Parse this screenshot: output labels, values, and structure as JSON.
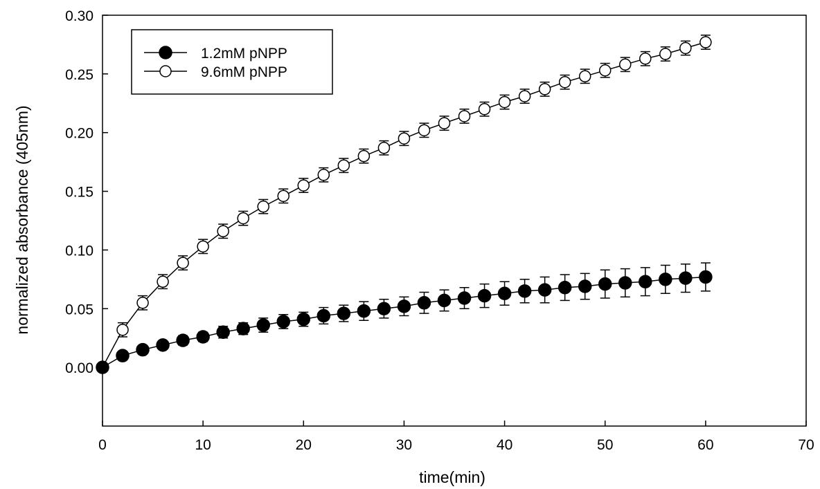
{
  "chart_data": {
    "type": "line",
    "title": "",
    "xlabel": "time(min)",
    "ylabel": "normalized absorbance (405nm)",
    "xlim": [
      0,
      70
    ],
    "ylim": [
      -0.05,
      0.3
    ],
    "x_ticks": [
      "0",
      "10",
      "20",
      "30",
      "40",
      "50",
      "60",
      "70"
    ],
    "y_ticks": [
      "0.00",
      "0.05",
      "0.10",
      "0.15",
      "0.20",
      "0.25",
      "0.30"
    ],
    "grid": false,
    "legend_position": "top-left",
    "x": [
      0,
      2,
      4,
      6,
      8,
      10,
      12,
      14,
      16,
      18,
      20,
      22,
      24,
      26,
      28,
      30,
      32,
      34,
      36,
      38,
      40,
      42,
      44,
      46,
      48,
      50,
      52,
      54,
      56,
      58,
      60
    ],
    "series": [
      {
        "name": "1.2mM pNPP",
        "marker": "filled-circle",
        "values": [
          0.0,
          0.01,
          0.015,
          0.019,
          0.023,
          0.026,
          0.03,
          0.033,
          0.036,
          0.039,
          0.041,
          0.044,
          0.046,
          0.048,
          0.05,
          0.052,
          0.055,
          0.057,
          0.059,
          0.061,
          0.063,
          0.065,
          0.066,
          0.068,
          0.069,
          0.071,
          0.072,
          0.073,
          0.075,
          0.076,
          0.077
        ],
        "errors": [
          0.0,
          0.002,
          0.003,
          0.003,
          0.004,
          0.004,
          0.005,
          0.005,
          0.006,
          0.006,
          0.006,
          0.007,
          0.007,
          0.008,
          0.008,
          0.008,
          0.009,
          0.009,
          0.009,
          0.01,
          0.01,
          0.01,
          0.011,
          0.011,
          0.011,
          0.012,
          0.012,
          0.012,
          0.012,
          0.012,
          0.012
        ]
      },
      {
        "name": "9.6mM pNPP",
        "marker": "open-circle",
        "values": [
          0.0,
          0.032,
          0.055,
          0.073,
          0.089,
          0.103,
          0.116,
          0.127,
          0.137,
          0.146,
          0.155,
          0.164,
          0.172,
          0.18,
          0.187,
          0.195,
          0.202,
          0.208,
          0.214,
          0.22,
          0.226,
          0.231,
          0.237,
          0.243,
          0.248,
          0.253,
          0.258,
          0.263,
          0.267,
          0.272,
          0.277
        ]
      }
    ]
  }
}
